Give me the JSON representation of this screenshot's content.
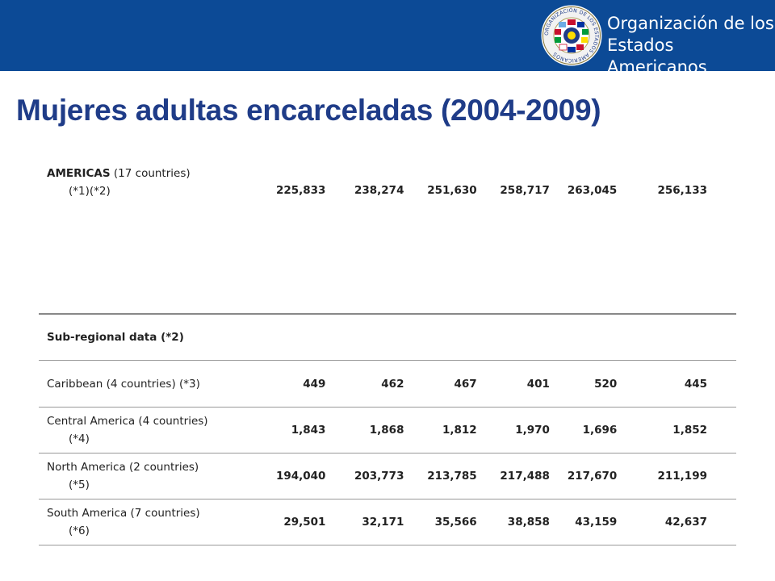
{
  "header": {
    "org_line1": "Organización de los",
    "org_line2": "Estados Americanos",
    "seal_text": "ORGANIZACIÓN DE LOS ESTADOS AMERICANOS",
    "brand_color": "#0c4a96",
    "logo_icon": "oas-seal-logo"
  },
  "title": "Mujeres adultas encarceladas (2004-2009)",
  "table": {
    "americas": {
      "label_bold": "AMERICAS",
      "label_rest": "(17 countries)",
      "label_note": "(*1)(*2)",
      "values": [
        "225,833",
        "238,274",
        "251,630",
        "258,717",
        "263,045",
        "256,133"
      ]
    },
    "subregional_header": "Sub-regional data (*2)",
    "rows": [
      {
        "label": "Caribbean (4 countries) (*3)",
        "note": "",
        "values": [
          "449",
          "462",
          "467",
          "401",
          "520",
          "445"
        ]
      },
      {
        "label": "Central America (4 countries)",
        "note": "(*4)",
        "values": [
          "1,843",
          "1,868",
          "1,812",
          "1,970",
          "1,696",
          "1,852"
        ]
      },
      {
        "label": "North America (2 countries)",
        "note": "(*5)",
        "values": [
          "194,040",
          "203,773",
          "213,785",
          "217,488",
          "217,670",
          "211,199"
        ]
      },
      {
        "label": "South America (7 countries)",
        "note": "(*6)",
        "values": [
          "29,501",
          "32,171",
          "35,566",
          "38,858",
          "43,159",
          "42,637"
        ]
      }
    ]
  }
}
